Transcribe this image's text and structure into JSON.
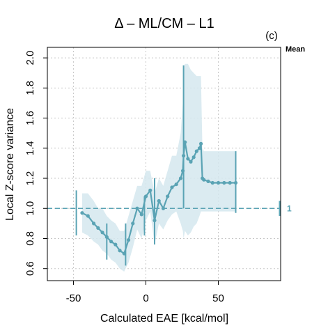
{
  "chart_data": {
    "type": "line",
    "title": "Δ – ML/CM – L1",
    "panel_label": "(c)",
    "side_label": "Mean",
    "xlabel": "Calculated EAE [kcal/mol]",
    "ylabel": "Local Z-score variance",
    "xlim": [
      -68,
      93
    ],
    "ylim": [
      0.52,
      2.07
    ],
    "x_ticks": [
      -50,
      0,
      50
    ],
    "x_tick_labels": [
      "-50",
      "0",
      "50"
    ],
    "y_ticks": [
      0.6,
      0.8,
      1.0,
      1.2,
      1.4,
      1.6,
      1.8,
      2.0
    ],
    "y_tick_labels": [
      "0.6",
      "0.8",
      "1.0",
      "1.2",
      "1.4",
      "1.6",
      "1.8",
      "2.0"
    ],
    "grid": true,
    "reference_line": {
      "y": 1.0,
      "label": "1",
      "color": "#5aa3b4"
    },
    "colors": {
      "line": "#5aa3b4",
      "band": "#d5e8ef",
      "grid": "#c8c8c8"
    },
    "series": [
      {
        "x": [
          -44,
          -40,
          -36,
          -33,
          -30,
          -27,
          -24,
          -21,
          -18,
          -15,
          -12,
          -9,
          -6,
          -3,
          0,
          3,
          6,
          9,
          12,
          15,
          18,
          21,
          24,
          25.5,
          26,
          27,
          29,
          31,
          33,
          35,
          37,
          38,
          39,
          40,
          43,
          46,
          50,
          54,
          58,
          62
        ],
        "y": [
          0.97,
          0.95,
          0.9,
          0.87,
          0.84,
          0.81,
          0.78,
          0.76,
          0.72,
          0.7,
          0.79,
          0.9,
          1.0,
          0.96,
          1.08,
          1.12,
          0.92,
          1.05,
          1.0,
          1.08,
          1.14,
          1.16,
          1.2,
          1.25,
          1.35,
          1.44,
          1.33,
          1.31,
          1.34,
          1.38,
          1.4,
          1.43,
          1.2,
          1.19,
          1.18,
          1.17,
          1.17,
          1.17,
          1.17,
          1.17
        ],
        "upper": [
          1.1,
          1.1,
          1.05,
          1.0,
          1.0,
          0.95,
          0.92,
          0.9,
          0.85,
          0.85,
          0.95,
          1.05,
          1.15,
          1.15,
          1.25,
          1.25,
          1.1,
          1.2,
          1.15,
          1.25,
          1.35,
          1.35,
          1.5,
          1.7,
          1.94,
          1.96,
          1.96,
          1.92,
          1.9,
          1.88,
          1.88,
          1.88,
          1.4,
          1.38,
          1.38,
          1.38,
          1.38,
          1.38,
          1.38,
          1.38
        ],
        "lower": [
          0.84,
          0.82,
          0.78,
          0.76,
          0.72,
          0.7,
          0.66,
          0.64,
          0.6,
          0.58,
          0.64,
          0.74,
          0.86,
          0.8,
          0.92,
          0.98,
          0.76,
          0.9,
          0.86,
          0.92,
          0.96,
          0.98,
          0.9,
          0.85,
          0.8,
          0.85,
          0.82,
          0.84,
          0.88,
          0.9,
          0.95,
          0.98,
          0.98,
          0.98,
          0.98,
          0.98,
          0.98,
          0.98,
          0.98,
          0.98
        ]
      }
    ],
    "error_bars": [
      {
        "x": -48,
        "y": 0.97,
        "low": 0.82,
        "high": 1.12
      },
      {
        "x": -27,
        "y": 0.81,
        "low": 0.66,
        "high": 0.9
      },
      {
        "x": -14,
        "y": 0.75,
        "low": 0.62,
        "high": 0.9
      },
      {
        "x": -1,
        "y": 0.97,
        "low": 0.82,
        "high": 1.08
      },
      {
        "x": 6,
        "y": 0.94,
        "low": 0.76,
        "high": 1.2
      },
      {
        "x": 26,
        "y": 1.35,
        "low": 1.0,
        "high": 1.95
      },
      {
        "x": 62,
        "y": 1.17,
        "low": 0.97,
        "high": 1.38
      }
    ]
  }
}
